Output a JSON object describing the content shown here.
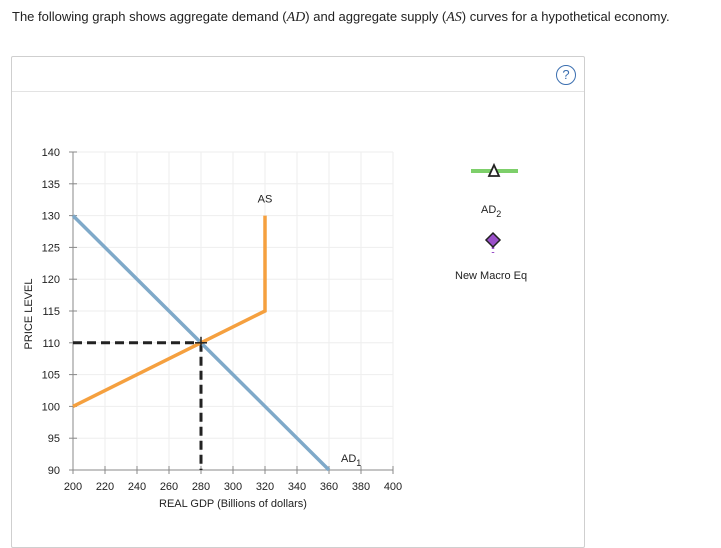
{
  "prompt": {
    "before": "The following graph shows aggregate demand (",
    "ad": "AD",
    "middle": ") and aggregate supply (",
    "as": "AS",
    "after": ") curves for a hypothetical economy."
  },
  "help_label": "?",
  "tool_legend": {
    "ad2_label": "AD",
    "ad2_subscript": "2",
    "new_eq_label": "New Macro Eq",
    "colors": {
      "ad2": "#7dcf6a",
      "new_eq": "#9a4fc9",
      "triangle": "#222222"
    }
  },
  "chart_data": {
    "type": "line",
    "xlabel": "REAL GDP (Billions of dollars)",
    "ylabel": "PRICE LEVEL",
    "xlim": [
      200,
      400
    ],
    "ylim": [
      90,
      140
    ],
    "x_ticks": [
      200,
      220,
      240,
      260,
      280,
      300,
      320,
      340,
      360,
      380,
      400
    ],
    "y_ticks": [
      90,
      95,
      100,
      105,
      110,
      115,
      120,
      125,
      130,
      135,
      140
    ],
    "grid": true,
    "series": [
      {
        "name": "AD",
        "subscript": "1",
        "color": "#7fa9c9",
        "points": [
          [
            200,
            130
          ],
          [
            360,
            90
          ]
        ]
      },
      {
        "name": "AS",
        "color": "#f5a03f",
        "points": [
          [
            200,
            100
          ],
          [
            320,
            115
          ],
          [
            320,
            130
          ]
        ]
      }
    ],
    "equilibrium": {
      "x": 280,
      "y": 110,
      "color": "#222222"
    }
  }
}
